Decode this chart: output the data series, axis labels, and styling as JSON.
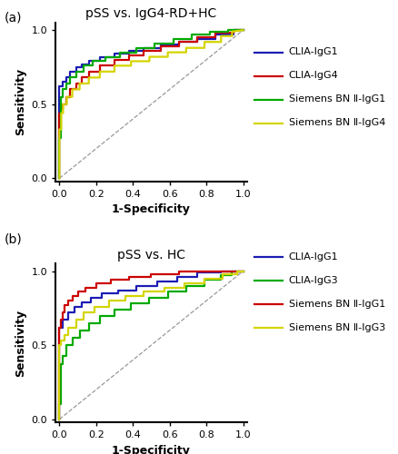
{
  "panel_a": {
    "title": "pSS vs. IgG4-RD+HC",
    "xlabel": "1-Specificity",
    "ylabel": "Sensitivity",
    "curves": [
      {
        "label": "CLIA-IgG1",
        "color": "#1C1CB4",
        "key_points": [
          [
            0,
            0
          ],
          [
            0,
            0.62
          ],
          [
            0.02,
            0.62
          ],
          [
            0.02,
            0.65
          ],
          [
            0.04,
            0.65
          ],
          [
            0.04,
            0.68
          ],
          [
            0.06,
            0.68
          ],
          [
            0.06,
            0.72
          ],
          [
            0.09,
            0.72
          ],
          [
            0.09,
            0.75
          ],
          [
            0.12,
            0.75
          ],
          [
            0.12,
            0.77
          ],
          [
            0.16,
            0.77
          ],
          [
            0.16,
            0.79
          ],
          [
            0.22,
            0.79
          ],
          [
            0.22,
            0.82
          ],
          [
            0.3,
            0.82
          ],
          [
            0.3,
            0.84
          ],
          [
            0.38,
            0.84
          ],
          [
            0.38,
            0.86
          ],
          [
            0.46,
            0.86
          ],
          [
            0.46,
            0.88
          ],
          [
            0.55,
            0.88
          ],
          [
            0.55,
            0.9
          ],
          [
            0.65,
            0.9
          ],
          [
            0.65,
            0.92
          ],
          [
            0.75,
            0.92
          ],
          [
            0.75,
            0.94
          ],
          [
            0.85,
            0.94
          ],
          [
            0.85,
            0.97
          ],
          [
            0.95,
            0.97
          ],
          [
            0.95,
            1.0
          ],
          [
            1.0,
            1.0
          ]
        ]
      },
      {
        "label": "CLIA-IgG4",
        "color": "#CC0000",
        "key_points": [
          [
            0,
            0
          ],
          [
            0,
            0.44
          ],
          [
            0.01,
            0.44
          ],
          [
            0.01,
            0.47
          ],
          [
            0.02,
            0.47
          ],
          [
            0.02,
            0.5
          ],
          [
            0.04,
            0.5
          ],
          [
            0.04,
            0.55
          ],
          [
            0.06,
            0.55
          ],
          [
            0.06,
            0.6
          ],
          [
            0.09,
            0.6
          ],
          [
            0.09,
            0.64
          ],
          [
            0.12,
            0.64
          ],
          [
            0.12,
            0.68
          ],
          [
            0.16,
            0.68
          ],
          [
            0.16,
            0.72
          ],
          [
            0.22,
            0.72
          ],
          [
            0.22,
            0.76
          ],
          [
            0.3,
            0.76
          ],
          [
            0.3,
            0.8
          ],
          [
            0.38,
            0.8
          ],
          [
            0.38,
            0.83
          ],
          [
            0.46,
            0.83
          ],
          [
            0.46,
            0.86
          ],
          [
            0.55,
            0.86
          ],
          [
            0.55,
            0.89
          ],
          [
            0.65,
            0.89
          ],
          [
            0.65,
            0.92
          ],
          [
            0.75,
            0.92
          ],
          [
            0.75,
            0.95
          ],
          [
            0.85,
            0.95
          ],
          [
            0.85,
            0.98
          ],
          [
            0.95,
            0.98
          ],
          [
            0.95,
            1.0
          ],
          [
            1.0,
            1.0
          ]
        ]
      },
      {
        "label": "Siemens BN Ⅱ-IgG1",
        "color": "#00AA00",
        "key_points": [
          [
            0,
            0
          ],
          [
            0,
            0.27
          ],
          [
            0.01,
            0.27
          ],
          [
            0.01,
            0.55
          ],
          [
            0.02,
            0.55
          ],
          [
            0.02,
            0.6
          ],
          [
            0.04,
            0.6
          ],
          [
            0.04,
            0.64
          ],
          [
            0.06,
            0.64
          ],
          [
            0.06,
            0.68
          ],
          [
            0.09,
            0.68
          ],
          [
            0.09,
            0.72
          ],
          [
            0.13,
            0.72
          ],
          [
            0.13,
            0.76
          ],
          [
            0.18,
            0.76
          ],
          [
            0.18,
            0.79
          ],
          [
            0.25,
            0.79
          ],
          [
            0.25,
            0.82
          ],
          [
            0.33,
            0.82
          ],
          [
            0.33,
            0.85
          ],
          [
            0.42,
            0.85
          ],
          [
            0.42,
            0.88
          ],
          [
            0.52,
            0.88
          ],
          [
            0.52,
            0.91
          ],
          [
            0.62,
            0.91
          ],
          [
            0.62,
            0.94
          ],
          [
            0.72,
            0.94
          ],
          [
            0.72,
            0.97
          ],
          [
            0.82,
            0.97
          ],
          [
            0.82,
            0.99
          ],
          [
            0.92,
            0.99
          ],
          [
            0.92,
            1.0
          ],
          [
            1.0,
            1.0
          ]
        ]
      },
      {
        "label": "Siemens BN Ⅱ-IgG4",
        "color": "#D4D400",
        "key_points": [
          [
            0,
            0
          ],
          [
            0,
            0.33
          ],
          [
            0.01,
            0.33
          ],
          [
            0.01,
            0.44
          ],
          [
            0.02,
            0.44
          ],
          [
            0.02,
            0.5
          ],
          [
            0.04,
            0.5
          ],
          [
            0.04,
            0.55
          ],
          [
            0.07,
            0.55
          ],
          [
            0.07,
            0.6
          ],
          [
            0.11,
            0.6
          ],
          [
            0.11,
            0.64
          ],
          [
            0.16,
            0.64
          ],
          [
            0.16,
            0.68
          ],
          [
            0.22,
            0.68
          ],
          [
            0.22,
            0.72
          ],
          [
            0.3,
            0.72
          ],
          [
            0.3,
            0.76
          ],
          [
            0.39,
            0.76
          ],
          [
            0.39,
            0.79
          ],
          [
            0.49,
            0.79
          ],
          [
            0.49,
            0.82
          ],
          [
            0.59,
            0.82
          ],
          [
            0.59,
            0.85
          ],
          [
            0.69,
            0.85
          ],
          [
            0.69,
            0.88
          ],
          [
            0.79,
            0.88
          ],
          [
            0.79,
            0.92
          ],
          [
            0.88,
            0.92
          ],
          [
            0.88,
            0.96
          ],
          [
            0.94,
            0.96
          ],
          [
            0.94,
            0.99
          ],
          [
            1.0,
            1.0
          ]
        ]
      }
    ],
    "legend_labels": [
      "CLIA-IgG1",
      "CLIA-IgG4",
      "Siemens BN Ⅱ-IgG1",
      "Siemens BN Ⅱ-IgG4"
    ],
    "legend_colors": [
      "#1C1CB4",
      "#CC0000",
      "#00AA00",
      "#D4D400"
    ]
  },
  "panel_b": {
    "title": "pSS vs. HC",
    "xlabel": "1-Specificity",
    "ylabel": "Sensitivity",
    "curves": [
      {
        "label": "CLIA-IgG1",
        "color": "#1C1CB4",
        "key_points": [
          [
            0,
            0
          ],
          [
            0,
            0.62
          ],
          [
            0.02,
            0.62
          ],
          [
            0.02,
            0.67
          ],
          [
            0.05,
            0.67
          ],
          [
            0.05,
            0.72
          ],
          [
            0.08,
            0.72
          ],
          [
            0.08,
            0.76
          ],
          [
            0.12,
            0.76
          ],
          [
            0.12,
            0.79
          ],
          [
            0.17,
            0.79
          ],
          [
            0.17,
            0.82
          ],
          [
            0.23,
            0.82
          ],
          [
            0.23,
            0.85
          ],
          [
            0.32,
            0.85
          ],
          [
            0.32,
            0.87
          ],
          [
            0.42,
            0.87
          ],
          [
            0.42,
            0.9
          ],
          [
            0.53,
            0.9
          ],
          [
            0.53,
            0.93
          ],
          [
            0.64,
            0.93
          ],
          [
            0.64,
            0.96
          ],
          [
            0.75,
            0.96
          ],
          [
            0.75,
            0.99
          ],
          [
            0.88,
            0.99
          ],
          [
            0.88,
            1.0
          ],
          [
            1.0,
            1.0
          ]
        ]
      },
      {
        "label": "CLIA-IgG3",
        "color": "#00AA00",
        "key_points": [
          [
            0,
            0
          ],
          [
            0,
            0.1
          ],
          [
            0.01,
            0.1
          ],
          [
            0.01,
            0.37
          ],
          [
            0.02,
            0.37
          ],
          [
            0.02,
            0.43
          ],
          [
            0.04,
            0.43
          ],
          [
            0.04,
            0.5
          ],
          [
            0.07,
            0.5
          ],
          [
            0.07,
            0.55
          ],
          [
            0.11,
            0.55
          ],
          [
            0.11,
            0.6
          ],
          [
            0.16,
            0.6
          ],
          [
            0.16,
            0.65
          ],
          [
            0.22,
            0.65
          ],
          [
            0.22,
            0.7
          ],
          [
            0.3,
            0.7
          ],
          [
            0.3,
            0.74
          ],
          [
            0.39,
            0.74
          ],
          [
            0.39,
            0.78
          ],
          [
            0.49,
            0.78
          ],
          [
            0.49,
            0.82
          ],
          [
            0.59,
            0.82
          ],
          [
            0.59,
            0.86
          ],
          [
            0.69,
            0.86
          ],
          [
            0.69,
            0.9
          ],
          [
            0.79,
            0.9
          ],
          [
            0.79,
            0.94
          ],
          [
            0.88,
            0.94
          ],
          [
            0.88,
            0.97
          ],
          [
            0.94,
            0.97
          ],
          [
            0.94,
            1.0
          ],
          [
            1.0,
            1.0
          ]
        ]
      },
      {
        "label": "Siemens BN Ⅱ-IgG1",
        "color": "#CC0000",
        "key_points": [
          [
            0,
            0
          ],
          [
            0,
            0.62
          ],
          [
            0.01,
            0.62
          ],
          [
            0.01,
            0.67
          ],
          [
            0.02,
            0.67
          ],
          [
            0.02,
            0.72
          ],
          [
            0.03,
            0.72
          ],
          [
            0.03,
            0.77
          ],
          [
            0.05,
            0.77
          ],
          [
            0.05,
            0.8
          ],
          [
            0.07,
            0.8
          ],
          [
            0.07,
            0.83
          ],
          [
            0.1,
            0.83
          ],
          [
            0.1,
            0.86
          ],
          [
            0.14,
            0.86
          ],
          [
            0.14,
            0.89
          ],
          [
            0.2,
            0.89
          ],
          [
            0.2,
            0.92
          ],
          [
            0.28,
            0.92
          ],
          [
            0.28,
            0.94
          ],
          [
            0.38,
            0.94
          ],
          [
            0.38,
            0.96
          ],
          [
            0.5,
            0.96
          ],
          [
            0.5,
            0.98
          ],
          [
            0.65,
            0.98
          ],
          [
            0.65,
            1.0
          ],
          [
            1.0,
            1.0
          ]
        ]
      },
      {
        "label": "Siemens BN Ⅱ-IgG3",
        "color": "#D4D400",
        "key_points": [
          [
            0,
            0
          ],
          [
            0,
            0.5
          ],
          [
            0.01,
            0.5
          ],
          [
            0.01,
            0.53
          ],
          [
            0.03,
            0.53
          ],
          [
            0.03,
            0.57
          ],
          [
            0.05,
            0.57
          ],
          [
            0.05,
            0.62
          ],
          [
            0.09,
            0.62
          ],
          [
            0.09,
            0.67
          ],
          [
            0.13,
            0.67
          ],
          [
            0.13,
            0.72
          ],
          [
            0.19,
            0.72
          ],
          [
            0.19,
            0.76
          ],
          [
            0.27,
            0.76
          ],
          [
            0.27,
            0.8
          ],
          [
            0.36,
            0.8
          ],
          [
            0.36,
            0.83
          ],
          [
            0.46,
            0.83
          ],
          [
            0.46,
            0.86
          ],
          [
            0.57,
            0.86
          ],
          [
            0.57,
            0.89
          ],
          [
            0.68,
            0.89
          ],
          [
            0.68,
            0.92
          ],
          [
            0.79,
            0.92
          ],
          [
            0.79,
            0.95
          ],
          [
            0.89,
            0.95
          ],
          [
            0.89,
            0.98
          ],
          [
            0.97,
            0.98
          ],
          [
            0.97,
            1.0
          ],
          [
            1.0,
            1.0
          ]
        ]
      }
    ],
    "legend_labels": [
      "CLIA-IgG1",
      "CLIA-IgG3",
      "Siemens BN Ⅱ-IgG1",
      "Siemens BN Ⅱ-IgG3"
    ],
    "legend_colors": [
      "#1C1CB4",
      "#00AA00",
      "#CC0000",
      "#D4D400"
    ]
  },
  "background_color": "#ffffff",
  "panel_label_fontsize": 10,
  "title_fontsize": 10,
  "axis_label_fontsize": 9,
  "tick_fontsize": 8,
  "legend_fontsize": 8,
  "line_width": 1.6
}
